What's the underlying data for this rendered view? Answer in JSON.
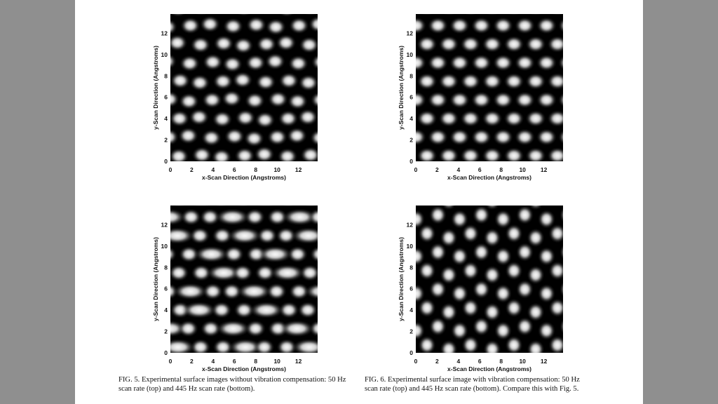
{
  "figures": [
    {
      "id": "fig5-top",
      "x_label": "x-Scan Direction (Angstroms)",
      "y_label": "y-Scan Direction (Angstroms)",
      "x_ticks": [
        "0",
        "2",
        "4",
        "6",
        "8",
        "10",
        "12"
      ],
      "y_ticks": [
        "0",
        "2",
        "4",
        "6",
        "8",
        "10",
        "12"
      ],
      "range": [
        0,
        13.8
      ]
    },
    {
      "id": "fig6-top",
      "x_label": "x-Scan Direction (Angstroms)",
      "y_label": "y-Scan Direction (Angstroms)",
      "x_ticks": [
        "0",
        "2",
        "4",
        "6",
        "8",
        "10",
        "12"
      ],
      "y_ticks": [
        "0",
        "2",
        "4",
        "6",
        "8",
        "10",
        "12"
      ],
      "range": [
        0,
        13.8
      ]
    },
    {
      "id": "fig5-bottom",
      "x_label": "x-Scan Direction (Angstroms)",
      "y_label": "y-Scan Direction (Angstroms)",
      "x_ticks": [
        "0",
        "2",
        "4",
        "6",
        "8",
        "10",
        "12"
      ],
      "y_ticks": [
        "0",
        "2",
        "4",
        "6",
        "8",
        "10",
        "12"
      ],
      "range": [
        0,
        13.8
      ]
    },
    {
      "id": "fig6-bottom",
      "x_label": "x-Scan Direction (Angstroms)",
      "y_label": "y-Scan Direction (Angstroms)",
      "x_ticks": [
        "0",
        "2",
        "4",
        "6",
        "8",
        "10",
        "12"
      ],
      "y_ticks": [
        "0",
        "2",
        "4",
        "6",
        "8",
        "10",
        "12"
      ],
      "range": [
        0,
        13.8
      ]
    }
  ],
  "captions": {
    "fig5": {
      "line1": "FIG. 5. Experimental surface images without vibration compensation: 50 Hz",
      "line2": "scan rate (top) and 445 Hz scan rate (bottom)."
    },
    "fig6": {
      "line1": "FIG. 6. Experimental surface image with vibration compensation: 50 Hz",
      "line2": "scan rate (top) and 445 Hz scan rate (bottom). Compare this with Fig. 5."
    }
  },
  "colors": {
    "background": "#8f8f8f",
    "page": "#ffffff",
    "image_dark": "#000000",
    "image_bright": "#ffffff"
  }
}
